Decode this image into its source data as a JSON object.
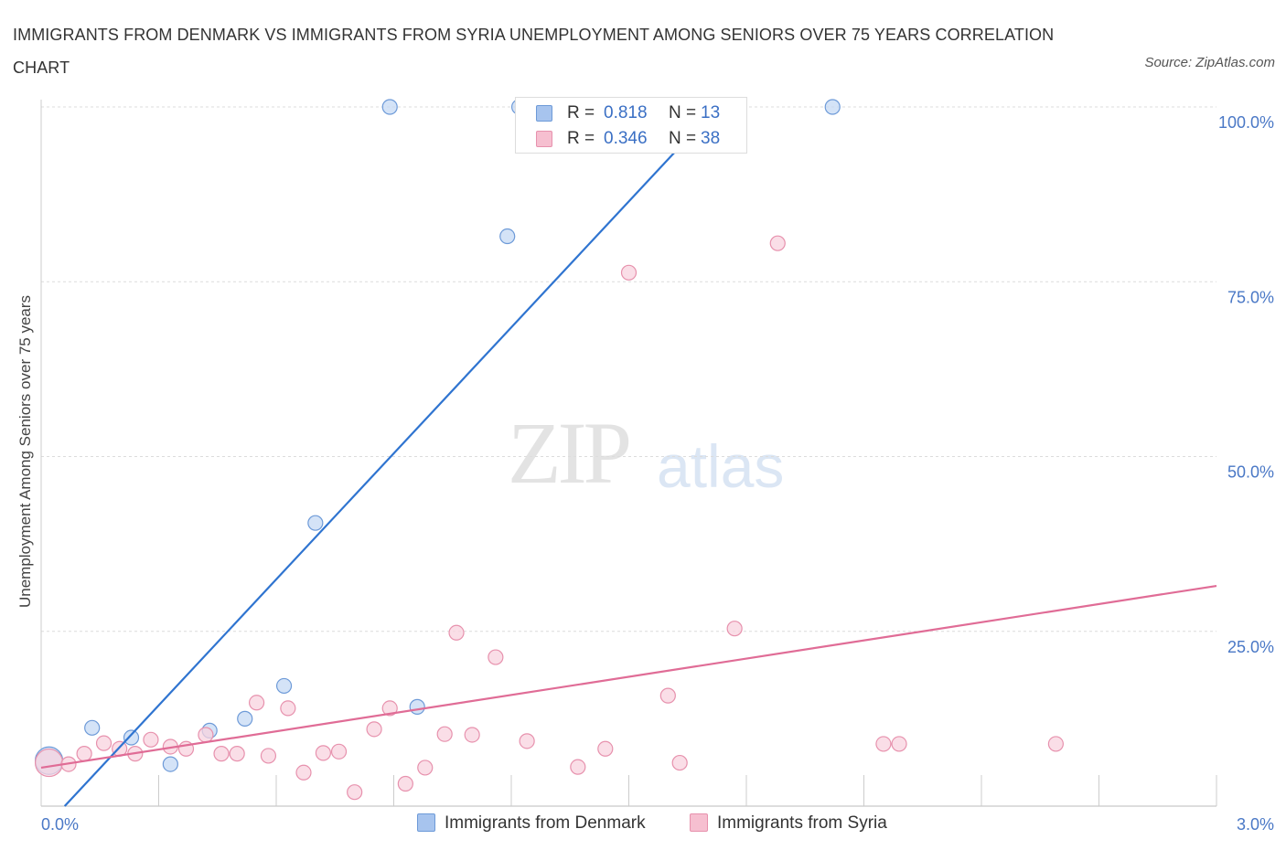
{
  "title": "IMMIGRANTS FROM DENMARK VS IMMIGRANTS FROM SYRIA UNEMPLOYMENT AMONG SENIORS OVER 75 YEARS CORRELATION CHART",
  "source": "Source: ZipAtlas.com",
  "watermark": {
    "zip": "ZIP",
    "atlas": "atlas"
  },
  "legend": {
    "rows": [
      {
        "r_label": "R =",
        "r_value": "0.818",
        "n_label": "N =",
        "n_value": "13",
        "color": "#a7c4ee",
        "border": "#6d9ad8"
      },
      {
        "r_label": "R =",
        "r_value": "0.346",
        "n_label": "N =",
        "n_value": "38",
        "color": "#f6bfd0",
        "border": "#e791ad"
      }
    ]
  },
  "chart_data": {
    "type": "scatter",
    "title": "IMMIGRANTS FROM DENMARK VS IMMIGRANTS FROM SYRIA UNEMPLOYMENT AMONG SENIORS OVER 75 YEARS CORRELATION CHART",
    "xlabel": "",
    "ylabel": "Unemployment Among Seniors over 75 years",
    "xlim": [
      0,
      3.0
    ],
    "ylim": [
      0,
      100
    ],
    "x_tick_labels": [
      {
        "value": 0,
        "label": "0.0%"
      },
      {
        "value": 3.0,
        "label": "3.0%"
      }
    ],
    "y_tick_labels": [
      {
        "value": 100,
        "label": "100.0%"
      },
      {
        "value": 75,
        "label": "75.0%"
      },
      {
        "value": 50,
        "label": "50.0%"
      },
      {
        "value": 25,
        "label": "25.0%"
      }
    ],
    "grid": true,
    "legend_position": "bottom",
    "series": [
      {
        "name": "Immigrants from Denmark",
        "color": "#6d9ad8",
        "fill": "#c6d9f4",
        "line_color": "#2f74d0",
        "trend": {
          "x0": 0.06,
          "y0": 0.0,
          "x1": 1.7,
          "y1": 98.5
        },
        "points": [
          {
            "x": 0.02,
            "y": 6.5,
            "big": true
          },
          {
            "x": 0.13,
            "y": 11.2
          },
          {
            "x": 0.23,
            "y": 9.8
          },
          {
            "x": 0.33,
            "y": 6.0
          },
          {
            "x": 0.43,
            "y": 10.8
          },
          {
            "x": 0.52,
            "y": 12.5
          },
          {
            "x": 0.62,
            "y": 17.2
          },
          {
            "x": 0.7,
            "y": 40.5
          },
          {
            "x": 0.89,
            "y": 100
          },
          {
            "x": 0.96,
            "y": 14.2
          },
          {
            "x": 1.19,
            "y": 81.5
          },
          {
            "x": 1.22,
            "y": 100
          },
          {
            "x": 2.02,
            "y": 100
          }
        ]
      },
      {
        "name": "Immigrants from Syria",
        "color": "#e791ad",
        "fill": "#f8d3df",
        "line_color": "#e06c96",
        "trend": {
          "x0": 0.0,
          "y0": 5.5,
          "x1": 3.0,
          "y1": 31.5
        },
        "points": [
          {
            "x": 0.02,
            "y": 6.2,
            "big": true
          },
          {
            "x": 0.07,
            "y": 6.0
          },
          {
            "x": 0.11,
            "y": 7.5
          },
          {
            "x": 0.16,
            "y": 9.0
          },
          {
            "x": 0.2,
            "y": 8.2
          },
          {
            "x": 0.24,
            "y": 7.5
          },
          {
            "x": 0.28,
            "y": 9.5
          },
          {
            "x": 0.33,
            "y": 8.5
          },
          {
            "x": 0.37,
            "y": 8.2
          },
          {
            "x": 0.42,
            "y": 10.2
          },
          {
            "x": 0.46,
            "y": 7.5
          },
          {
            "x": 0.5,
            "y": 7.5
          },
          {
            "x": 0.55,
            "y": 14.8
          },
          {
            "x": 0.58,
            "y": 7.2
          },
          {
            "x": 0.63,
            "y": 14.0
          },
          {
            "x": 0.67,
            "y": 4.8
          },
          {
            "x": 0.72,
            "y": 7.6
          },
          {
            "x": 0.76,
            "y": 7.8
          },
          {
            "x": 0.8,
            "y": 2.0
          },
          {
            "x": 0.85,
            "y": 11.0
          },
          {
            "x": 0.89,
            "y": 14.0
          },
          {
            "x": 0.93,
            "y": 3.2
          },
          {
            "x": 0.98,
            "y": 5.5
          },
          {
            "x": 1.03,
            "y": 10.3
          },
          {
            "x": 1.06,
            "y": 24.8
          },
          {
            "x": 1.1,
            "y": 10.2
          },
          {
            "x": 1.16,
            "y": 21.3
          },
          {
            "x": 1.24,
            "y": 9.3
          },
          {
            "x": 1.37,
            "y": 5.6
          },
          {
            "x": 1.44,
            "y": 8.2
          },
          {
            "x": 1.5,
            "y": 76.3
          },
          {
            "x": 1.63,
            "y": 6.2
          },
          {
            "x": 1.6,
            "y": 15.8
          },
          {
            "x": 1.77,
            "y": 25.4
          },
          {
            "x": 1.88,
            "y": 80.5
          },
          {
            "x": 2.15,
            "y": 8.9
          },
          {
            "x": 2.19,
            "y": 8.9
          },
          {
            "x": 2.59,
            "y": 8.9
          }
        ]
      }
    ]
  }
}
